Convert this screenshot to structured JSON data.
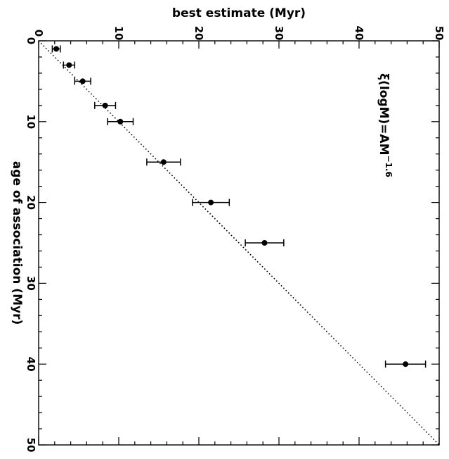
{
  "chart_data": {
    "type": "scatter",
    "xlabel": "age of association (Myr)",
    "ylabel": "best estimate (Myr)",
    "annotation": "ξ(logM)=AM",
    "annotation_exponent": "−1.6",
    "xlim": [
      0,
      50
    ],
    "ylim": [
      0,
      50
    ],
    "x_ticks": [
      0,
      10,
      20,
      30,
      40,
      50
    ],
    "y_ticks": [
      0,
      10,
      20,
      30,
      40,
      50
    ],
    "reference_line": "y = x",
    "points": [
      {
        "x": 1,
        "y": 2.2,
        "y_err": 0.5
      },
      {
        "x": 3,
        "y": 3.8,
        "y_err": 0.7
      },
      {
        "x": 5,
        "y": 5.5,
        "y_err": 1.0
      },
      {
        "x": 8,
        "y": 8.3,
        "y_err": 1.3
      },
      {
        "x": 10,
        "y": 10.2,
        "y_err": 1.6
      },
      {
        "x": 15,
        "y": 15.6,
        "y_err": 2.1
      },
      {
        "x": 20,
        "y": 21.5,
        "y_err": 2.3
      },
      {
        "x": 25,
        "y": 28.2,
        "y_err": 2.4
      },
      {
        "x": 40,
        "y": 45.8,
        "y_err": 2.5
      }
    ]
  }
}
